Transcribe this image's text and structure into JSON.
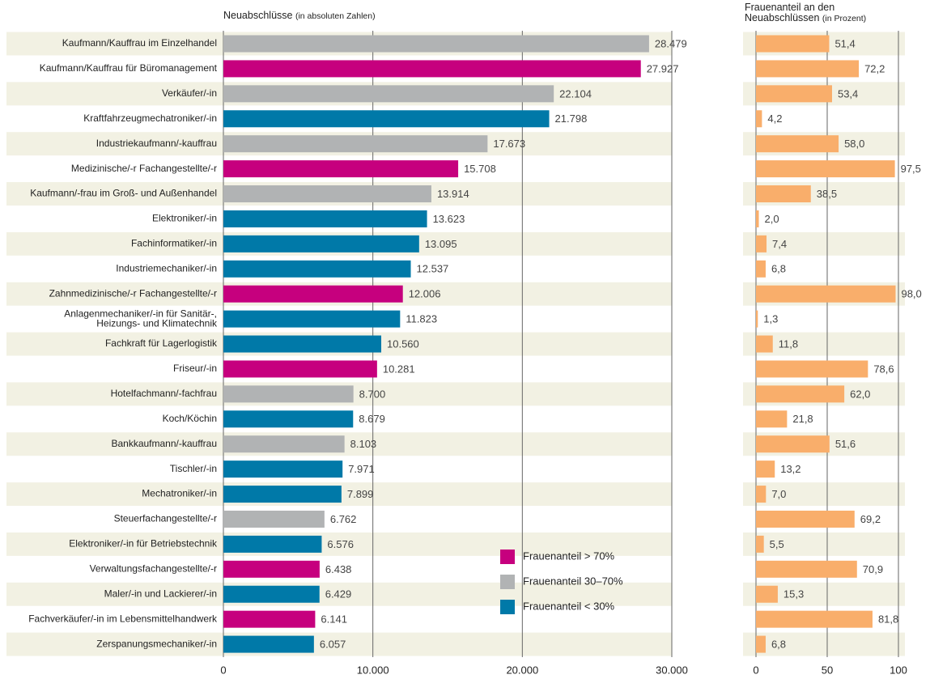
{
  "chart_data": [
    {
      "type": "hbar",
      "title": "Neuabschlüsse",
      "title_note": "(in absoluten Zahlen)",
      "categories": [
        "Kaufmann/Kauffrau im Einzelhandel",
        "Kaufmann/Kauffrau für Büromanagement",
        "Verkäufer/-in",
        "Kraftfahrzeugmechatroniker/-in",
        "Industriekaufmann/-kauffrau",
        "Medizinische/-r Fachangestellte/-r",
        "Kaufmann/-frau im Groß- und Außenhandel",
        "Elektroniker/-in",
        "Fachinformatiker/-in",
        "Industriemechaniker/-in",
        "Zahnmedizinische/-r Fachangestellte/-r",
        [
          "Anlagenmechaniker/-in für Sanitär-,",
          "Heizungs- und Klimatechnik"
        ],
        "Fachkraft für Lagerlogistik",
        "Friseur/-in",
        "Hotelfachmann/-fachfrau",
        "Koch/Köchin",
        "Bankkaufmann/-kauffrau",
        "Tischler/-in",
        "Mechatroniker/-in",
        "Steuerfachangestellte/-r",
        "Elektroniker/-in für Betriebstechnik",
        "Verwaltungsfachangestellte/-r",
        "Maler/-in und Lackierer/-in",
        "Fachverkäufer/-in im Lebensmittelhandwerk",
        "Zerspanungsmechaniker/-in"
      ],
      "values": [
        28479,
        27927,
        22104,
        21798,
        17673,
        15708,
        13914,
        13623,
        13095,
        12537,
        12006,
        11823,
        10560,
        10281,
        8700,
        8679,
        8103,
        7971,
        7899,
        6762,
        6576,
        6438,
        6429,
        6141,
        6057
      ],
      "value_labels": [
        "28.479",
        "27.927",
        "22.104",
        "21.798",
        "17.673",
        "15.708",
        "13.914",
        "13.623",
        "13.095",
        "12.537",
        "12.006",
        "11.823",
        "10.560",
        "10.281",
        "8.700",
        "8.679",
        "8.103",
        "7.971",
        "7.899",
        "6.762",
        "6.576",
        "6.438",
        "6.429",
        "6.141",
        "6.057"
      ],
      "colors": [
        "#b1b3b4",
        "#c6007e",
        "#b1b3b4",
        "#0079a8",
        "#b1b3b4",
        "#c6007e",
        "#b1b3b4",
        "#0079a8",
        "#0079a8",
        "#0079a8",
        "#c6007e",
        "#0079a8",
        "#0079a8",
        "#c6007e",
        "#b1b3b4",
        "#0079a8",
        "#b1b3b4",
        "#0079a8",
        "#0079a8",
        "#b1b3b4",
        "#0079a8",
        "#c6007e",
        "#0079a8",
        "#c6007e",
        "#0079a8"
      ],
      "legend": [
        {
          "label": "Frauenanteil > 70%",
          "color": "#c6007e"
        },
        {
          "label": "Frauenanteil 30–70%",
          "color": "#b1b3b4"
        },
        {
          "label": "Frauenanteil < 30%",
          "color": "#0079a8"
        }
      ],
      "xlim": [
        0,
        30000
      ],
      "xticks": [
        0,
        {
          "value": 10000,
          "label": "10.000"
        },
        {
          "value": 20000,
          "label": "20.000"
        },
        {
          "value": 30000,
          "label": "30.000"
        }
      ],
      "grid": true
    },
    {
      "type": "hbar",
      "title_lines": [
        "Frauenanteil an den",
        "Neuabschlüssen"
      ],
      "title_note": "(in Prozent)",
      "values": [
        51.4,
        72.2,
        53.4,
        4.2,
        58.0,
        97.5,
        38.5,
        2.0,
        7.4,
        6.8,
        98.0,
        1.3,
        11.8,
        78.6,
        62.0,
        21.8,
        51.6,
        13.2,
        7.0,
        69.2,
        5.5,
        70.9,
        15.3,
        81.8,
        6.8
      ],
      "value_labels": [
        "51,4",
        "72,2",
        "53,4",
        "4,2",
        "58,0",
        "97,5",
        "38,5",
        "2,0",
        "7,4",
        "6,8",
        "98,0",
        "1,3",
        "11,8",
        "78,6",
        "62,0",
        "21,8",
        "51,6",
        "13,2",
        "7,0",
        "69,2",
        "5,5",
        "70,9",
        "15,3",
        "81,8",
        "6,8"
      ],
      "color": "#f9ae6b",
      "xlim": [
        0,
        100
      ],
      "xticks": [
        0,
        50,
        100
      ],
      "grid": true
    }
  ]
}
